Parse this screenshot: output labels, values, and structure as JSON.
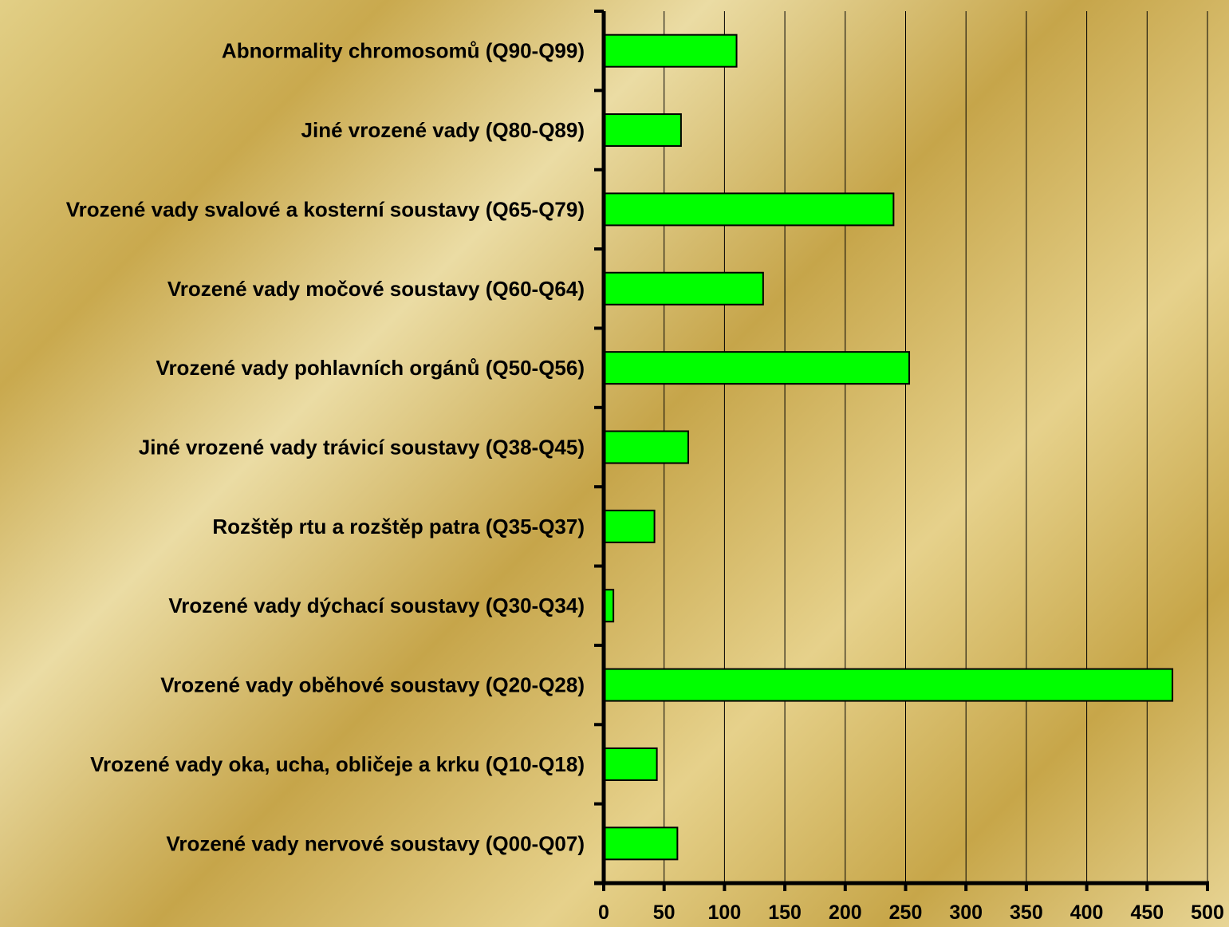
{
  "chart_data": {
    "type": "bar",
    "orientation": "horizontal",
    "categories": [
      "Vrozené vady nervové soustavy (Q00-Q07)",
      "Vrozené vady oka, ucha, obličeje a krku (Q10-Q18)",
      "Vrozené vady oběhové soustavy (Q20-Q28)",
      "Vrozené vady dýchací soustavy (Q30-Q34)",
      "Rozštěp rtu a rozštěp patra (Q35-Q37)",
      "Jiné vrozené vady trávicí soustavy (Q38-Q45)",
      "Vrozené vady pohlavních orgánů (Q50-Q56)",
      "Vrozené vady močové soustavy (Q60-Q64)",
      "Vrozené vady svalové a kosterní soustavy (Q65-Q79)",
      "Jiné vrozené vady (Q80-Q89)",
      "Abnormality chromosomů (Q90-Q99)"
    ],
    "values": [
      61,
      44,
      471,
      8,
      42,
      70,
      253,
      132,
      240,
      64,
      110
    ],
    "title": "",
    "xlabel": "",
    "ylabel": "",
    "xlim": [
      0,
      500
    ],
    "xticks": [
      "0",
      "50",
      "100",
      "150",
      "200",
      "250",
      "300",
      "350",
      "400",
      "450",
      "500"
    ],
    "grid": "vertical",
    "legend": "none",
    "colors": {
      "bar": "#00ff00",
      "bar_edge": "#000000",
      "axis": "#000000",
      "grid": "#000000"
    }
  }
}
